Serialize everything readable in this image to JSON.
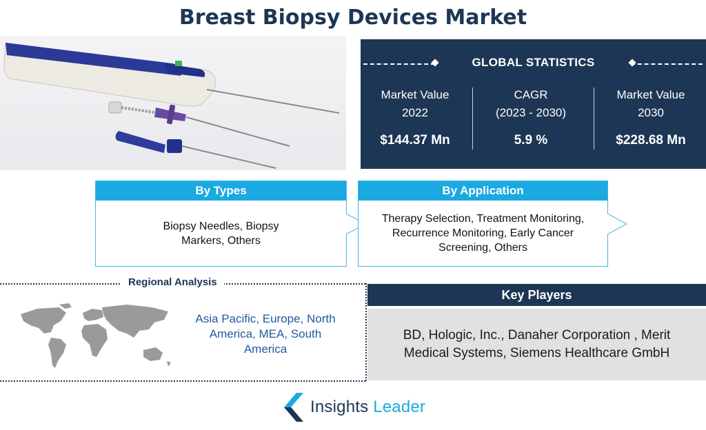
{
  "title": "Breast Biopsy Devices Market",
  "global_statistics": {
    "heading": "GLOBAL STATISTICS",
    "items": [
      {
        "label_line1": "Market Value",
        "label_line2": "2022",
        "value": "$144.37 Mn"
      },
      {
        "label_line1": "CAGR",
        "label_line2": "(2023 - 2030)",
        "value": "5.9 %"
      },
      {
        "label_line1": "Market Value",
        "label_line2": "2030",
        "value": "$228.68 Mn"
      }
    ]
  },
  "segments": {
    "types": {
      "heading": "By Types",
      "text": "Biopsy Needles, Biopsy Markers, Others"
    },
    "application": {
      "heading": "By Application",
      "text": "Therapy Selection, Treatment Monitoring, Recurrence Monitoring, Early Cancer Screening, Others"
    }
  },
  "regional": {
    "heading": "Regional Analysis",
    "regions": "Asia Pacific, Europe, North America, MEA, South America"
  },
  "key_players": {
    "heading": "Key Players",
    "text": "BD, Hologic, Inc., Danaher Corporation , Merit Medical Systems, Siemens Healthcare GmbH"
  },
  "logo": {
    "word1": "Insights",
    "word2": "Leader"
  },
  "colors": {
    "navy": "#1d3655",
    "sky": "#1ba9e2",
    "gray": "#e1e1e1"
  }
}
